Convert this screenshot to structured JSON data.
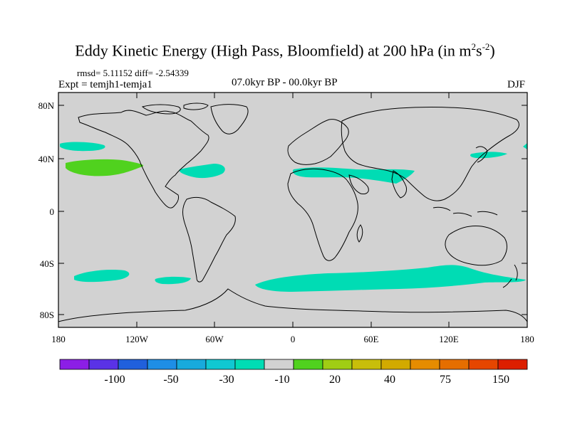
{
  "title": {
    "main": "Eddy Kinetic Energy (High Pass, Bloomfield) at 200 hPa (in m",
    "sup1": "2",
    "mid": "s",
    "sup2": "-2",
    "end": ")"
  },
  "stats": "rmsd= 5.11152 diff= -2.54339",
  "experiment": "Expt = temjh1-temja1",
  "period": "07.0kyr BP - 00.0kyr BP",
  "season": "DJF",
  "axes": {
    "y_ticks": [
      "80N",
      "40N",
      "0",
      "40S",
      "80S"
    ],
    "x_ticks": [
      "180",
      "120W",
      "60W",
      "0",
      "60E",
      "120E",
      "180"
    ]
  },
  "colorbar": {
    "labels": [
      "-100",
      "-50",
      "-30",
      "-10",
      "20",
      "40",
      "75",
      "150"
    ],
    "colors": [
      "#8c1ee6",
      "#5a32e6",
      "#2060dc",
      "#1e8ee6",
      "#18aadc",
      "#10c8d2",
      "#00dcb4",
      "#d2d2d2",
      "#50d21e",
      "#a0cd14",
      "#c8be0a",
      "#d2aa00",
      "#e68c00",
      "#e66e00",
      "#e64600",
      "#dc1e00"
    ]
  },
  "chart_data": {
    "type": "map",
    "variable": "Eddy Kinetic Energy difference",
    "level": "200 hPa",
    "units": "m2 s-2",
    "background_class": "-10 to 20",
    "anomalies": [
      {
        "region": "North Pacific (west coast N. America)",
        "lon_range": [
          -178,
          -145
        ],
        "lat_range": [
          45,
          52
        ],
        "class": "-30 to -10"
      },
      {
        "region": "Central/Eastern North Pacific",
        "lon_range": [
          -168,
          -115
        ],
        "lat_range": [
          28,
          42
        ],
        "class": "10 to 20"
      },
      {
        "region": "Southeastern USA / Western Atlantic",
        "lon_range": [
          -85,
          -45
        ],
        "lat_range": [
          25,
          38
        ],
        "class": "-30 to -10"
      },
      {
        "region": "North Africa / Middle East / South Asia",
        "lon_range": [
          0,
          90
        ],
        "lat_range": [
          18,
          37
        ],
        "class": "-30 to -10"
      },
      {
        "region": "Japan / NW Pacific",
        "lon_range": [
          140,
          165
        ],
        "lat_range": [
          38,
          45
        ],
        "class": "-30 to -10"
      },
      {
        "region": "South Pacific",
        "lon_range": [
          -175,
          -135
        ],
        "lat_range": [
          -50,
          -40
        ],
        "class": "-30 to -10"
      },
      {
        "region": "Southeast Pacific",
        "lon_range": [
          -110,
          -75
        ],
        "lat_range": [
          -53,
          -45
        ],
        "class": "-30 to -10"
      },
      {
        "region": "Southern Ocean (Atlantic-Indian-Australian)",
        "lon_range": [
          -30,
          170
        ],
        "lat_range": [
          -63,
          -40
        ],
        "class": "-30 to -10"
      }
    ],
    "colorbar_levels": [
      "-100",
      "-50",
      "-30",
      "-10",
      "20",
      "40",
      "75",
      "150"
    ]
  }
}
